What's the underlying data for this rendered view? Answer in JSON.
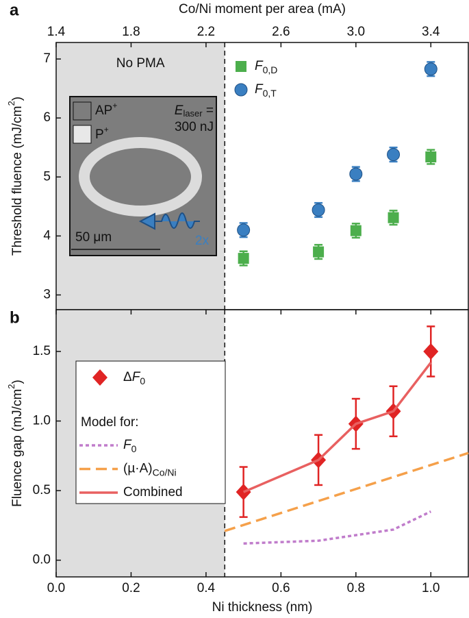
{
  "chart_data": [
    {
      "type": "scatter",
      "panel": "a",
      "top_xlabel": "Co/Ni moment per area (mA)",
      "top_xlim": [
        1.4,
        3.6
      ],
      "top_xticks": [
        1.4,
        1.8,
        2.2,
        2.6,
        {
          "value": 3,
          "label": "3.0"
        },
        3.4
      ],
      "xlim": [
        0,
        1.1
      ],
      "ylim": [
        2.75,
        7.28
      ],
      "yticks": [
        3,
        4,
        5,
        6,
        7
      ],
      "ylabel": {
        "text": "Threshold fluence (mJ/cm",
        "sup": "2",
        "end": ")"
      },
      "shaded_xlim": [
        0,
        0.45
      ],
      "annotation": "No PMA",
      "inset": {
        "ap": "AP",
        "ap_sup": "+",
        "p": "P",
        "p_sup": "+",
        "e": "E",
        "e_sub": "laser",
        "eq": " =",
        "energy": "300 nJ",
        "scale": "50 μm",
        "mult": "2x"
      },
      "series": [
        {
          "name": "F",
          "name_sub": "0,D",
          "italic": true,
          "color": "#4cae4c",
          "marker": "square",
          "x": [
            0.5,
            0.7,
            0.8,
            0.9,
            1.0
          ],
          "values": [
            3.62,
            3.73,
            4.09,
            4.31,
            5.34
          ],
          "errors": [
            0.12,
            0.12,
            0.12,
            0.12,
            0.12
          ]
        },
        {
          "name": "F",
          "name_sub": "0,T",
          "italic": true,
          "color": "#3a7fc1",
          "marker": "circle",
          "x": [
            0.5,
            0.7,
            0.8,
            0.9,
            1.0
          ],
          "values": [
            4.1,
            4.44,
            5.05,
            5.38,
            6.83
          ],
          "errors": [
            0.12,
            0.12,
            0.12,
            0.12,
            0.12
          ]
        }
      ]
    },
    {
      "type": "line",
      "panel": "b",
      "xlabel": "Ni thickness (nm)",
      "xlim": [
        0,
        1.1
      ],
      "xticks": [
        {
          "value": 0,
          "label": "0.0"
        },
        0.2,
        0.4,
        0.6,
        0.8,
        {
          "value": 1,
          "label": "1.0"
        }
      ],
      "ylim": [
        -0.12,
        1.8
      ],
      "yticks": [
        {
          "value": 0,
          "label": "0.0"
        },
        0.5,
        {
          "value": 1,
          "label": "1.0"
        },
        1.5
      ],
      "ylabel": {
        "text": "Fluence gap (mJ/cm",
        "sup": "2",
        "end": ")"
      },
      "shaded_xlim": [
        0,
        0.45
      ],
      "legend_heading": "Model for:",
      "series": [
        {
          "name_prefix": "Δ",
          "name": "F",
          "name_sub": "0",
          "italic": true,
          "color": "#e02424",
          "marker": "diamond",
          "x": [
            0.5,
            0.7,
            0.8,
            0.9,
            1.0
          ],
          "values": [
            0.49,
            0.72,
            0.98,
            1.07,
            1.5
          ],
          "errors": [
            0.18,
            0.18,
            0.18,
            0.18,
            0.18
          ]
        },
        {
          "name": "F",
          "name_sub": "0",
          "italic": true,
          "color": "#c07ccb",
          "style": "dotted",
          "x": [
            0.5,
            0.7,
            0.9,
            1.0
          ],
          "values": [
            0.12,
            0.14,
            0.22,
            0.35
          ]
        },
        {
          "name": "(µ·A)",
          "name_sub": "Co/Ni",
          "italic": false,
          "color": "#f5a04a",
          "style": "dashed",
          "x": [
            0.45,
            1.1
          ],
          "values": [
            0.21,
            0.77
          ]
        },
        {
          "name": "Combined",
          "italic": false,
          "color": "#e86060",
          "style": "solid",
          "x": [
            0.5,
            0.7,
            0.8,
            0.9,
            1.0
          ],
          "values": [
            0.49,
            0.72,
            0.98,
            1.07,
            1.42
          ]
        }
      ]
    }
  ]
}
